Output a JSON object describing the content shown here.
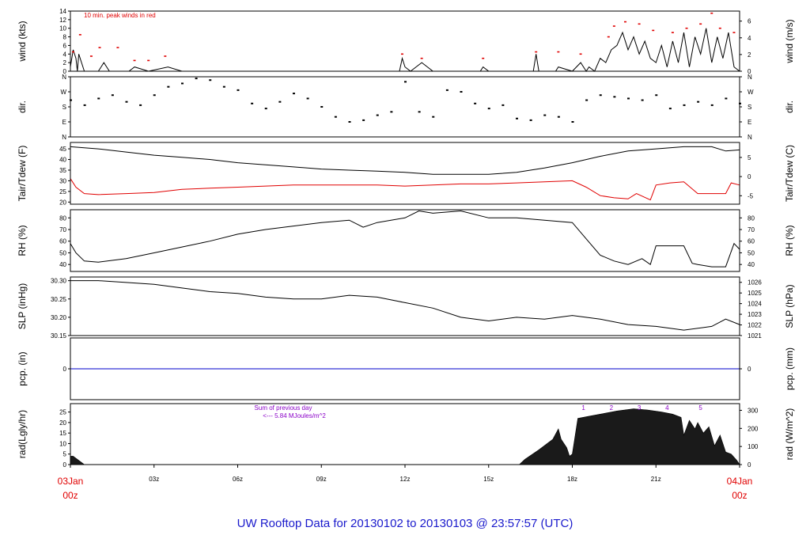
{
  "title": "UW Rooftop Data for 20130102  to  20130103 @ 23:57:57  (UTC)",
  "colors": {
    "title": "#1a1acc",
    "accent": "#e00000",
    "purple": "#8a00c8",
    "blue": "#0000cc",
    "line": "#000000"
  },
  "x_axis": {
    "start_label_top": "03Jan",
    "start_label_bottom": "00z",
    "end_label_top": "04Jan",
    "end_label_bottom": "00z",
    "ticks": [
      "03z",
      "06z",
      "09z",
      "12z",
      "15z",
      "18z",
      "21z"
    ],
    "range_hours": [
      0,
      24
    ]
  },
  "chart_data": [
    {
      "id": "wind",
      "type": "line",
      "ylabel_left": "wind (kts)",
      "ylabel_right": "wind (m/s)",
      "ylim": [
        0,
        14
      ],
      "yticks_left": [
        "0",
        "2",
        "4",
        "6",
        "8",
        "10",
        "12",
        "14"
      ],
      "yticks_right": [
        "0",
        "2",
        "4",
        "6"
      ],
      "right_ylim": [
        0,
        7.2
      ],
      "annotation": "10 min. peak winds in red",
      "series": [
        {
          "x": [
            0,
            0.1,
            0.2,
            0.25,
            0.3,
            0.5,
            1.0,
            1.1,
            1.2,
            1.4,
            1.6,
            2.1,
            2.3,
            2.8,
            3.5,
            4.0,
            11.8,
            11.9,
            12.0,
            12.2,
            12.6,
            13.0,
            14.7,
            14.8,
            15.0,
            16.6,
            16.7,
            16.8,
            17.4,
            17.5,
            18.0,
            18.3,
            18.5,
            18.6,
            18.8,
            19.0,
            19.2,
            19.4,
            19.6,
            19.8,
            20.0,
            20.2,
            20.4,
            20.6,
            20.8,
            21.0,
            21.2,
            21.4,
            21.6,
            21.8,
            22.0,
            22.2,
            22.4,
            22.6,
            22.8,
            23.0,
            23.2,
            23.4,
            23.6,
            23.8,
            24.0
          ],
          "y": [
            1,
            5,
            3,
            0,
            4,
            0,
            0,
            1,
            2,
            0,
            0,
            0,
            1,
            0,
            1,
            0,
            0,
            3,
            1,
            0,
            2,
            0,
            0,
            1,
            0,
            0,
            4,
            0,
            0,
            1,
            0,
            2,
            0,
            1,
            0,
            3,
            2,
            5,
            6,
            9,
            5,
            8,
            4,
            7,
            3,
            2,
            6,
            1,
            7,
            2,
            9,
            1,
            8,
            4,
            10,
            2,
            8,
            3,
            9,
            1,
            0
          ]
        },
        {
          "name": "10 min. peak winds",
          "x": [
            0.1,
            0.35,
            0.75,
            1.05,
            1.7,
            2.3,
            2.8,
            3.4,
            11.9,
            12.6,
            14.8,
            16.7,
            17.5,
            18.3,
            19.3,
            19.5,
            19.9,
            20.4,
            20.9,
            21.6,
            22.1,
            22.6,
            23.0,
            23.3,
            23.8
          ],
          "y": [
            4.5,
            8.5,
            3.5,
            5.5,
            5.5,
            2.5,
            2.5,
            3.5,
            4,
            3,
            3,
            4.5,
            4.5,
            4,
            8,
            10.5,
            11.5,
            11,
            9.5,
            9,
            10,
            11,
            13.5,
            10,
            9
          ]
        }
      ]
    },
    {
      "id": "dir",
      "type": "scatter",
      "ylabel_left": "dir.",
      "ylabel_right": "dir.",
      "ylim": [
        0,
        360
      ],
      "yticks": [
        "N",
        "E",
        "S",
        "W",
        "N"
      ],
      "series": [
        {
          "x": [
            0,
            0.5,
            1,
            1.5,
            2,
            2.5,
            3,
            3.5,
            4,
            4.5,
            5,
            5.5,
            6,
            6.5,
            7,
            7.5,
            8,
            8.5,
            9,
            9.5,
            10,
            10.5,
            11,
            11.5,
            12,
            12.5,
            13,
            13.5,
            14,
            14.5,
            15,
            15.5,
            16,
            16.5,
            17,
            17.5,
            18,
            18.5,
            19,
            19.5,
            20,
            20.5,
            21,
            21.5,
            22,
            22.5,
            23,
            23.5,
            24
          ],
          "y": [
            220,
            190,
            230,
            250,
            210,
            190,
            250,
            300,
            320,
            350,
            340,
            300,
            280,
            200,
            170,
            210,
            260,
            230,
            180,
            120,
            90,
            100,
            130,
            150,
            330,
            150,
            120,
            280,
            270,
            200,
            170,
            190,
            110,
            100,
            130,
            120,
            90,
            220,
            250,
            240,
            230,
            220,
            250,
            170,
            190,
            210,
            190,
            230,
            200
          ]
        }
      ]
    },
    {
      "id": "temp",
      "type": "line",
      "ylabel_left": "Tair/Tdew (F)",
      "ylabel_right": "Tair/Tdew (C)",
      "ylim": [
        19,
        48
      ],
      "yticks_left": [
        "20",
        "25",
        "30",
        "35",
        "40",
        "45"
      ],
      "yticks_right": [
        "-5",
        "0",
        "5"
      ],
      "right_ylim": [
        -7.2,
        8.9
      ],
      "series": [
        {
          "name": "Tair",
          "x": [
            0,
            0.5,
            1,
            2,
            3,
            4,
            5,
            6,
            7,
            8,
            9,
            10,
            11,
            12,
            13,
            14,
            15,
            16,
            17,
            18,
            19,
            20,
            21,
            22,
            23,
            23.5,
            24
          ],
          "y": [
            46,
            45.5,
            45,
            43.5,
            42,
            41,
            40,
            38.5,
            37.5,
            36.5,
            35.5,
            35,
            34.5,
            34,
            33,
            33,
            33,
            34,
            36,
            38.5,
            41.5,
            44,
            45,
            46,
            46,
            44,
            44.5
          ]
        },
        {
          "name": "Tdew",
          "x": [
            0,
            0.2,
            0.5,
            1,
            2,
            3,
            4,
            5,
            6,
            7,
            8,
            9,
            10,
            11,
            12,
            13,
            14,
            15,
            16,
            17,
            18,
            18.5,
            19,
            19.5,
            20,
            20.3,
            20.8,
            21,
            21.5,
            22,
            22.5,
            23,
            23.5,
            23.7,
            24
          ],
          "y": [
            31,
            27,
            24,
            23.5,
            24,
            24.5,
            26,
            26.5,
            27,
            27.5,
            28,
            28,
            28,
            28,
            27.5,
            28,
            28.5,
            28.5,
            29,
            29.5,
            30,
            27,
            23,
            22,
            21.5,
            24,
            21,
            28,
            29,
            29.5,
            24,
            24,
            24,
            29,
            28
          ]
        }
      ]
    },
    {
      "id": "rh",
      "type": "line",
      "ylabel_left": "RH (%)",
      "ylabel_right": "RH (%)",
      "ylim": [
        34,
        87
      ],
      "yticks": [
        "40",
        "50",
        "60",
        "70",
        "80"
      ],
      "series": [
        {
          "x": [
            0,
            0.2,
            0.5,
            1,
            2,
            3,
            4,
            5,
            6,
            7,
            8,
            9,
            10,
            10.5,
            11,
            12,
            12.5,
            13,
            14,
            15,
            16,
            17,
            18,
            18.5,
            19,
            19.5,
            20,
            20.5,
            20.8,
            21,
            22,
            22.3,
            22.5,
            23,
            23.5,
            23.8,
            24
          ],
          "y": [
            58,
            50,
            43,
            42,
            45,
            50,
            55,
            60,
            66,
            70,
            73,
            76,
            78,
            72,
            76,
            80,
            86,
            84,
            86,
            80,
            80,
            78,
            76,
            62,
            48,
            43,
            40,
            45,
            40,
            56,
            56,
            41,
            40,
            38,
            38,
            58,
            53
          ]
        }
      ]
    },
    {
      "id": "slp",
      "type": "line",
      "ylabel_left": "SLP (inHg)",
      "ylabel_right": "SLP (hPa)",
      "ylim": [
        30.15,
        30.31
      ],
      "yticks_left": [
        "30.15",
        "30.20",
        "30.25",
        "30.30"
      ],
      "yticks_right": [
        "1021",
        "1022",
        "1023",
        "1024",
        "1025",
        "1026"
      ],
      "right_ylim": [
        1021,
        1026.5
      ],
      "series": [
        {
          "x": [
            0,
            1,
            2,
            3,
            4,
            5,
            6,
            7,
            8,
            9,
            10,
            11,
            12,
            13,
            14,
            15,
            16,
            17,
            18,
            19,
            20,
            21,
            22,
            23,
            23.5,
            24
          ],
          "y": [
            30.3,
            30.3,
            30.295,
            30.29,
            30.28,
            30.27,
            30.265,
            30.255,
            30.25,
            30.25,
            30.26,
            30.255,
            30.24,
            30.225,
            30.2,
            30.19,
            30.2,
            30.195,
            30.205,
            30.195,
            30.18,
            30.175,
            30.165,
            30.175,
            30.195,
            30.18
          ]
        }
      ]
    },
    {
      "id": "pcp",
      "type": "line",
      "ylabel_left": "pcp. (in)",
      "ylabel_right": "pcp. (mm)",
      "ylim": [
        -1,
        1
      ],
      "yticks_left": [
        "0"
      ],
      "yticks_right": [
        "0"
      ],
      "series": [
        {
          "x": [
            0,
            24
          ],
          "y": [
            0,
            0
          ]
        }
      ]
    },
    {
      "id": "rad",
      "type": "area",
      "ylabel_left": "rad(Lgly/hr)",
      "ylabel_right": "rad (W/m^2)",
      "ylim": [
        0,
        29
      ],
      "yticks_left": [
        "0",
        "5",
        "10",
        "15",
        "20",
        "25"
      ],
      "yticks_right": [
        "0",
        "100",
        "200",
        "300"
      ],
      "right_ylim": [
        0,
        337
      ],
      "annotation_line1": "Sum of previous day",
      "annotation_line2": "<--- 5.84 MJoules/m^2",
      "hour_markers": [
        "1",
        "2",
        "3",
        "4",
        "5"
      ],
      "hour_marker_x": [
        18.4,
        19.4,
        20.4,
        21.4,
        22.6
      ],
      "series": [
        {
          "x": [
            0,
            0.1,
            0.3,
            0.5,
            16.1,
            16.3,
            16.8,
            17.3,
            17.5,
            17.6,
            17.8,
            17.9,
            18.0,
            18.2,
            18.6,
            19.0,
            19.6,
            20.2,
            20.7,
            21.2,
            21.6,
            21.9,
            22.0,
            22.2,
            22.4,
            22.5,
            22.7,
            22.9,
            23.1,
            23.3,
            23.5,
            23.7,
            23.9,
            24
          ],
          "y": [
            4,
            4,
            2,
            0,
            0,
            2.5,
            7,
            12,
            17,
            12,
            8,
            4,
            5,
            22,
            23,
            24,
            25.5,
            26.5,
            26,
            25,
            24,
            22.5,
            14,
            21,
            17,
            20,
            15,
            18,
            9,
            14,
            6,
            5,
            2,
            0
          ]
        }
      ]
    }
  ]
}
